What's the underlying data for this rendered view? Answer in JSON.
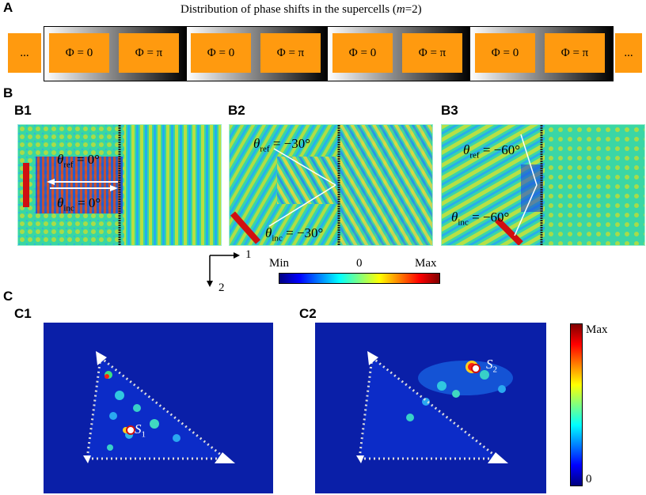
{
  "panel_a": {
    "label": "A",
    "title_prefix": "Distribution of phase shifts in the supercells (",
    "title_var": "m",
    "title_suffix": "=2)",
    "ellipsis_left": "...",
    "ellipsis_right": "...",
    "cells": [
      "Φ = 0",
      "Φ = π",
      "Φ = 0",
      "Φ = π",
      "Φ = 0",
      "Φ = π",
      "Φ = 0",
      "Φ = π"
    ],
    "colors": {
      "cell": "#ff9a0f"
    }
  },
  "panel_b": {
    "label": "B",
    "b1": {
      "label": "B1",
      "theta_ref": "= 0°",
      "theta_inc": "= 0°"
    },
    "b2": {
      "label": "B2",
      "theta_ref": "= −30°",
      "theta_inc": "= −30°"
    },
    "b3": {
      "label": "B3",
      "theta_ref": "= −60°",
      "theta_inc": "= −60°"
    },
    "theta_symbol": "θ",
    "sub_ref": "ref",
    "sub_inc": "inc",
    "axis_1": "1",
    "axis_2": "2",
    "colorbar": {
      "min": "Min",
      "mid": "0",
      "max": "Max"
    }
  },
  "panel_c": {
    "label": "C",
    "c1": {
      "label": "C1",
      "source": "S",
      "source_sub": "1"
    },
    "c2": {
      "label": "C2",
      "source": "S",
      "source_sub": "2"
    },
    "colorbar": {
      "max": "Max",
      "min": "0"
    }
  }
}
